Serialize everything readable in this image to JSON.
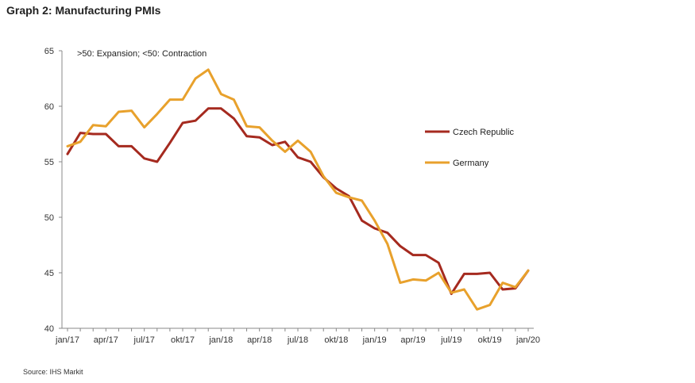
{
  "chart_data": {
    "type": "line",
    "title": "Graph 2: Manufacturing PMIs",
    "annotation": ">50: Expansion;  <50: Contraction",
    "source": "Source: IHS Markit",
    "xlabel": "",
    "ylabel": "",
    "ylim": [
      40,
      65
    ],
    "yticks": [
      40,
      45,
      50,
      55,
      60,
      65
    ],
    "x": [
      "jan/17",
      "feb/17",
      "mar/17",
      "apr/17",
      "maj/17",
      "jun/17",
      "jul/17",
      "aug/17",
      "sep/17",
      "okt/17",
      "nov/17",
      "dec/17",
      "jan/18",
      "feb/18",
      "mar/18",
      "apr/18",
      "maj/18",
      "jun/18",
      "jul/18",
      "aug/18",
      "sep/18",
      "okt/18",
      "nov/18",
      "dec/18",
      "jan/19",
      "feb/19",
      "mar/19",
      "apr/19",
      "maj/19",
      "jun/19",
      "jul/19",
      "aug/19",
      "sep/19",
      "okt/19",
      "nov/19",
      "dec/19",
      "jan/20"
    ],
    "xtick_labels": [
      "jan/17",
      "apr/17",
      "jul/17",
      "okt/17",
      "jan/18",
      "apr/18",
      "jul/18",
      "okt/18",
      "jan/19",
      "apr/19",
      "jul/19",
      "okt/19",
      "jan/20"
    ],
    "legend_position": "right",
    "series": [
      {
        "name": "Czech Republic",
        "color": "#a52a1f",
        "values": [
          55.7,
          57.6,
          57.5,
          57.5,
          56.4,
          56.4,
          55.3,
          55.0,
          56.7,
          58.5,
          58.7,
          59.8,
          59.8,
          58.9,
          57.3,
          57.2,
          56.5,
          56.8,
          55.4,
          55.0,
          53.6,
          52.6,
          51.9,
          49.7,
          49.0,
          48.6,
          47.4,
          46.6,
          46.6,
          45.9,
          43.1,
          44.9,
          44.9,
          45.0,
          43.5,
          43.6,
          45.2
        ]
      },
      {
        "name": "Germany",
        "color": "#e8a12c",
        "values": [
          56.4,
          56.8,
          58.3,
          58.2,
          59.5,
          59.6,
          58.1,
          59.3,
          60.6,
          60.6,
          62.5,
          63.3,
          61.1,
          60.6,
          58.2,
          58.1,
          56.9,
          55.9,
          56.9,
          55.9,
          53.7,
          52.2,
          51.8,
          51.5,
          49.7,
          47.6,
          44.1,
          44.4,
          44.3,
          45.0,
          43.2,
          43.5,
          41.7,
          42.1,
          44.1,
          43.7,
          45.2
        ]
      }
    ]
  }
}
